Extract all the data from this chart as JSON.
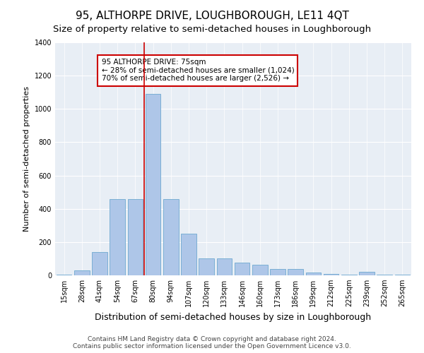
{
  "title": "95, ALTHORPE DRIVE, LOUGHBOROUGH, LE11 4QT",
  "subtitle": "Size of property relative to semi-detached houses in Loughborough",
  "xlabel": "Distribution of semi-detached houses by size in Loughborough",
  "ylabel": "Number of semi-detached properties",
  "categories": [
    "15sqm",
    "28sqm",
    "41sqm",
    "54sqm",
    "67sqm",
    "80sqm",
    "94sqm",
    "107sqm",
    "120sqm",
    "133sqm",
    "146sqm",
    "160sqm",
    "173sqm",
    "186sqm",
    "199sqm",
    "212sqm",
    "225sqm",
    "239sqm",
    "252sqm",
    "265sqm"
  ],
  "values": [
    5,
    30,
    140,
    460,
    460,
    1090,
    460,
    250,
    100,
    100,
    75,
    65,
    40,
    40,
    15,
    10,
    5,
    20,
    5,
    5
  ],
  "bar_color": "#aec6e8",
  "bar_edge_color": "#7aafd4",
  "vline_color": "#cc0000",
  "vline_x": 4.5,
  "annotation_text": "95 ALTHORPE DRIVE: 75sqm\n← 28% of semi-detached houses are smaller (1,024)\n70% of semi-detached houses are larger (2,526) →",
  "annotation_box_color": "#ffffff",
  "annotation_edge_color": "#cc0000",
  "footer_line1": "Contains HM Land Registry data © Crown copyright and database right 2024.",
  "footer_line2": "Contains public sector information licensed under the Open Government Licence v3.0.",
  "background_color": "#e8eef5",
  "ylim": [
    0,
    1400
  ],
  "yticks": [
    0,
    200,
    400,
    600,
    800,
    1000,
    1200,
    1400
  ],
  "title_fontsize": 11,
  "subtitle_fontsize": 9.5,
  "xlabel_fontsize": 9,
  "ylabel_fontsize": 8,
  "tick_fontsize": 7,
  "annotation_fontsize": 7.5,
  "footer_fontsize": 6.5
}
